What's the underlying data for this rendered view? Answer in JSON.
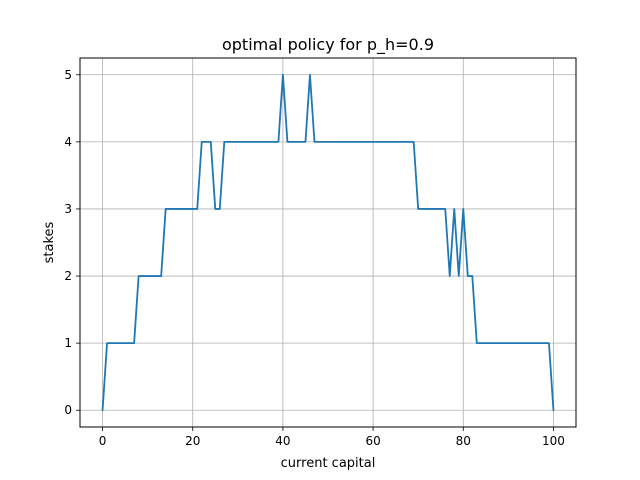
{
  "chart_data": {
    "type": "line",
    "title": "optimal policy for p_h=0.9",
    "xlabel": "current capital",
    "ylabel": "stakes",
    "xlim": [
      -5,
      105
    ],
    "ylim": [
      -0.25,
      5.25
    ],
    "xticks": [
      0,
      20,
      40,
      60,
      80,
      100
    ],
    "yticks": [
      0,
      1,
      2,
      3,
      4,
      5
    ],
    "grid": true,
    "series": [
      {
        "color": "#1f77b4",
        "x": [
          0,
          1,
          2,
          3,
          4,
          5,
          6,
          7,
          8,
          9,
          10,
          11,
          12,
          13,
          14,
          15,
          16,
          17,
          18,
          19,
          20,
          21,
          22,
          23,
          24,
          25,
          26,
          27,
          28,
          29,
          30,
          31,
          32,
          33,
          34,
          35,
          36,
          37,
          38,
          39,
          40,
          41,
          42,
          43,
          44,
          45,
          46,
          47,
          48,
          49,
          50,
          51,
          52,
          53,
          54,
          55,
          56,
          57,
          58,
          59,
          60,
          61,
          62,
          63,
          64,
          65,
          66,
          67,
          68,
          69,
          70,
          71,
          72,
          73,
          74,
          75,
          76,
          77,
          78,
          79,
          80,
          81,
          82,
          83,
          84,
          85,
          86,
          87,
          88,
          89,
          90,
          91,
          92,
          93,
          94,
          95,
          96,
          97,
          98,
          99,
          100
        ],
        "values": [
          0,
          1,
          1,
          1,
          1,
          1,
          1,
          1,
          2,
          2,
          2,
          2,
          2,
          2,
          3,
          3,
          3,
          3,
          3,
          3,
          3,
          3,
          4,
          4,
          4,
          3,
          3,
          4,
          4,
          4,
          4,
          4,
          4,
          4,
          4,
          4,
          4,
          4,
          4,
          4,
          5,
          4,
          4,
          4,
          4,
          4,
          5,
          4,
          4,
          4,
          4,
          4,
          4,
          4,
          4,
          4,
          4,
          4,
          4,
          4,
          4,
          4,
          4,
          4,
          4,
          4,
          4,
          4,
          4,
          4,
          3,
          3,
          3,
          3,
          3,
          3,
          3,
          2,
          3,
          2,
          3,
          2,
          2,
          1,
          1,
          1,
          1,
          1,
          1,
          1,
          1,
          1,
          1,
          1,
          1,
          1,
          1,
          1,
          1,
          1,
          0
        ]
      }
    ]
  },
  "colors": {
    "line": "#1f77b4",
    "grid": "#b0b0b0",
    "axes": "#000000"
  }
}
